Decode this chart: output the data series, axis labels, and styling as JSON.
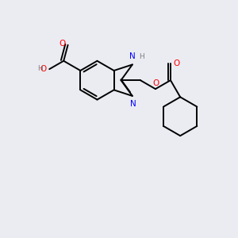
{
  "background_color": "#eaecf2",
  "bond_color": "#000000",
  "N_color": "#0000ff",
  "O_color": "#ff0000",
  "H_color": "#7f7f7f",
  "line_width": 1.4,
  "figsize": [
    3.0,
    3.0
  ],
  "dpi": 100,
  "xlim": [
    -0.15,
    1.05
  ],
  "ylim": [
    -0.75,
    0.65
  ]
}
